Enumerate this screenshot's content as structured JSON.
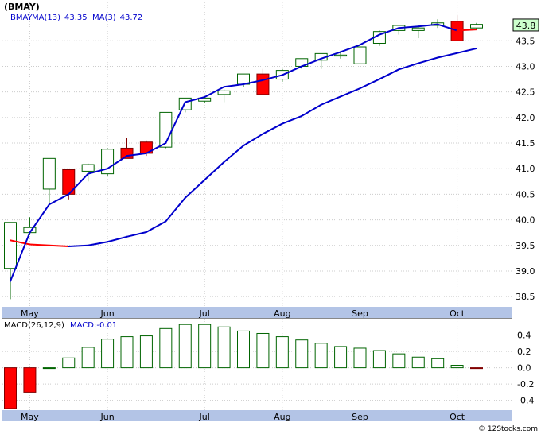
{
  "symbol_label": "(BMAY)",
  "credit": "© 12Stocks.com",
  "colors": {
    "up_candle": "#006400",
    "down_candle": "#ff0000",
    "ma_line": "#0000cc",
    "ma_highlight": "#ff0000",
    "axis_band": "#b3c4e6",
    "grid": "#cccccc",
    "text_blue": "#0000cc",
    "last_price_box": "#ccffcc"
  },
  "chart_data": [
    {
      "type": "candlestick",
      "legend": [
        {
          "label": "BMAY",
          "value": ""
        },
        {
          "label": "MA(13)",
          "value": "43.35"
        },
        {
          "label": "MA(3)",
          "value": "43.72"
        }
      ],
      "last_price": "43.8",
      "x_labels": [
        "May",
        "Jun",
        "Jul",
        "Aug",
        "Sep",
        "Oct"
      ],
      "y_ticks": [
        "38.5",
        "39.0",
        "39.5",
        "40.0",
        "40.5",
        "41.0",
        "41.5",
        "42.0",
        "42.5",
        "43.0",
        "43.5"
      ],
      "ylim": [
        38.3,
        44.25
      ],
      "candles": [
        {
          "open": 39.05,
          "high": 39.95,
          "low": 38.45,
          "close": 39.95
        },
        {
          "open": 39.75,
          "high": 40.05,
          "low": 39.7,
          "close": 39.85
        },
        {
          "open": 40.6,
          "high": 41.2,
          "low": 40.3,
          "close": 41.2
        },
        {
          "open": 40.98,
          "high": 41.0,
          "low": 40.4,
          "close": 40.5
        },
        {
          "open": 40.95,
          "high": 41.1,
          "low": 40.75,
          "close": 41.08
        },
        {
          "open": 40.9,
          "high": 41.4,
          "low": 40.85,
          "close": 41.38
        },
        {
          "open": 41.4,
          "high": 41.6,
          "low": 41.2,
          "close": 41.2
        },
        {
          "open": 41.52,
          "high": 41.55,
          "low": 41.25,
          "close": 41.3
        },
        {
          "open": 41.42,
          "high": 42.1,
          "low": 41.4,
          "close": 42.1
        },
        {
          "open": 42.15,
          "high": 42.38,
          "low": 42.1,
          "close": 42.38
        },
        {
          "open": 42.32,
          "high": 42.4,
          "low": 42.28,
          "close": 42.38
        },
        {
          "open": 42.45,
          "high": 42.55,
          "low": 42.3,
          "close": 42.52
        },
        {
          "open": 42.65,
          "high": 42.85,
          "low": 42.6,
          "close": 42.85
        },
        {
          "open": 42.85,
          "high": 42.95,
          "low": 42.45,
          "close": 42.45
        },
        {
          "open": 42.75,
          "high": 42.95,
          "low": 42.7,
          "close": 42.92
        },
        {
          "open": 43.0,
          "high": 43.15,
          "low": 42.95,
          "close": 43.15
        },
        {
          "open": 43.12,
          "high": 43.25,
          "low": 42.95,
          "close": 43.25
        },
        {
          "open": 43.2,
          "high": 43.3,
          "low": 43.15,
          "close": 43.22
        },
        {
          "open": 43.05,
          "high": 43.45,
          "low": 43.0,
          "close": 43.38
        },
        {
          "open": 43.45,
          "high": 43.7,
          "low": 43.4,
          "close": 43.68
        },
        {
          "open": 43.7,
          "high": 43.8,
          "low": 43.62,
          "close": 43.8
        },
        {
          "open": 43.7,
          "high": 43.8,
          "low": 43.55,
          "close": 43.75
        },
        {
          "open": 43.8,
          "high": 43.92,
          "low": 43.75,
          "close": 43.85
        },
        {
          "open": 43.88,
          "high": 44.0,
          "low": 43.5,
          "close": 43.5
        },
        {
          "open": 43.75,
          "high": 43.85,
          "low": 43.72,
          "close": 43.82
        }
      ],
      "ma13": [
        null,
        null,
        null,
        null,
        null,
        null,
        null,
        null,
        null,
        null,
        null,
        null,
        null,
        null,
        null,
        null,
        null,
        null,
        null,
        null,
        null,
        null,
        null,
        null,
        null
      ],
      "series": [
        {
          "name": "MA(13)",
          "values": [
            39.6,
            39.52,
            39.5,
            39.48,
            39.5,
            39.57,
            39.67,
            39.76,
            39.97,
            40.43,
            40.78,
            41.13,
            41.45,
            41.68,
            41.88,
            42.03,
            42.25,
            42.41,
            42.57,
            42.75,
            42.94,
            43.06,
            43.17,
            43.26,
            43.35
          ]
        },
        {
          "name": "MA(3)",
          "values": [
            38.8,
            39.75,
            40.3,
            40.5,
            40.9,
            41.0,
            41.25,
            41.3,
            41.5,
            42.3,
            42.4,
            42.6,
            42.65,
            42.73,
            42.83,
            43.0,
            43.15,
            43.28,
            43.42,
            43.62,
            43.75,
            43.78,
            43.82,
            43.7,
            43.72
          ]
        }
      ],
      "ma13_red_range": [
        0,
        3
      ],
      "ma3_red_range": [
        23,
        24
      ]
    },
    {
      "type": "bar",
      "legend": [
        {
          "label": "MACD(26,12,9)",
          "value": ""
        },
        {
          "label": "MACD:",
          "value": "-0.01"
        }
      ],
      "y_ticks": [
        "0.4",
        "0.2",
        "0.0",
        "-0.2",
        "-0.4"
      ],
      "ylim": [
        -0.52,
        0.6
      ],
      "values": [
        -0.5,
        -0.3,
        0.0,
        0.12,
        0.25,
        0.35,
        0.38,
        0.39,
        0.48,
        0.53,
        0.53,
        0.5,
        0.45,
        0.42,
        0.38,
        0.34,
        0.3,
        0.26,
        0.24,
        0.21,
        0.17,
        0.13,
        0.11,
        0.03,
        -0.01
      ]
    }
  ]
}
